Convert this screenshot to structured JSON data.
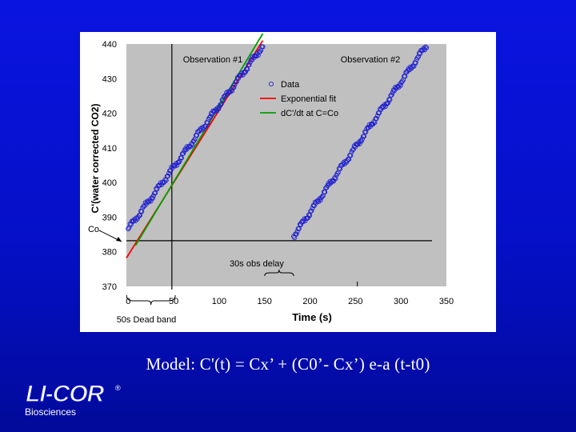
{
  "chart_data": {
    "type": "scatter",
    "x": {
      "label": "Time (s)",
      "ticks": [
        0,
        50,
        100,
        150,
        200,
        250,
        300,
        350
      ],
      "range": [
        -2,
        350
      ]
    },
    "y": {
      "label": "C'(water corrected CO2)",
      "ticks": [
        370,
        380,
        390,
        400,
        410,
        420,
        430,
        440
      ],
      "range": [
        370,
        440
      ]
    },
    "grid": false,
    "legend": {
      "placement": "top-right",
      "entries": [
        {
          "label": "Data",
          "marker": "circle"
        },
        {
          "label": "Exponential fit",
          "line": "#ff0000"
        },
        {
          "label": "dC'/dt at C=Co",
          "line": "#00a000"
        }
      ]
    },
    "annotations": {
      "obs1": "Observation #1",
      "obs2": "Observation #2",
      "co": "Co",
      "dead_band": "50s Dead band",
      "obs_delay": "30s obs delay"
    },
    "reference_lines": {
      "y": 383.2,
      "vertical_x": 48,
      "tick_x": 252
    },
    "series": [
      {
        "name": "Data",
        "segments": [
          {
            "x_start": 0,
            "x_end": 148,
            "y_start": 386.6,
            "y_end": 439.4,
            "points": 150
          },
          {
            "x_start": 182,
            "x_end": 328,
            "y_start": 384.6,
            "y_end": 439.6,
            "points": 150
          }
        ]
      },
      {
        "name": "Exponential fit",
        "x": [
          -2,
          148
        ],
        "y": [
          378.2,
          441.0
        ]
      },
      {
        "name": "dC'/dt at C=Co",
        "x": [
          8,
          148
        ],
        "y": [
          381.8,
          443.0
        ]
      }
    ],
    "colors": {
      "data": "#1f1fd0",
      "fit": "#ff0000",
      "tangent": "#00a000",
      "plot_bg": "#c0c0c0"
    }
  },
  "caption": {
    "model": "Model:  C'(t) = Cx’ + (C0’- Cx’) e-a (t-t0)"
  },
  "brand": {
    "logo": "LI-COR",
    "reg": "®",
    "subtitle": "Biosciences"
  }
}
